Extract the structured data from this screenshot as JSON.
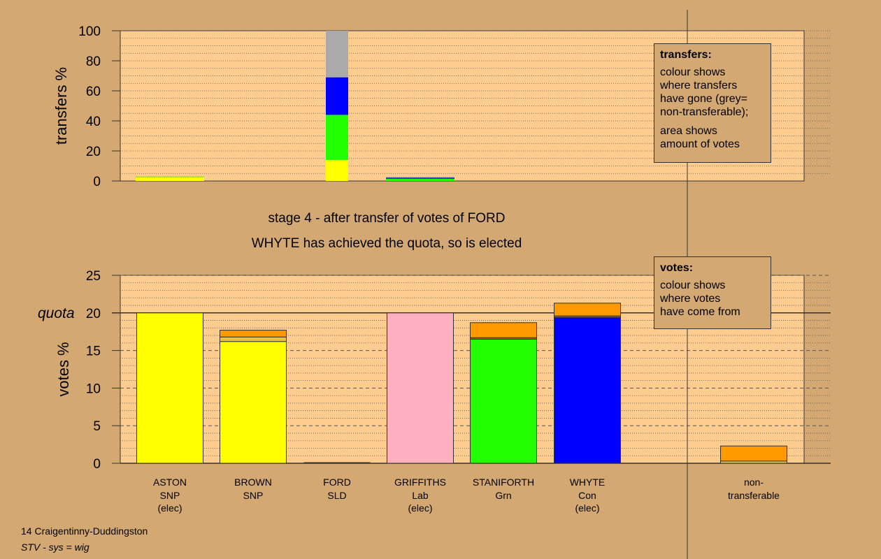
{
  "stage_text": "stage 4 - after transfer of votes of FORD",
  "elected_text": "WHYTE has achieved the quota, so is elected",
  "transfers_legend": {
    "title": "transfers:",
    "lines_a": [
      "colour shows",
      "where transfers",
      "have gone (grey=",
      "non-transferable);"
    ],
    "lines_b": [
      "area shows",
      "amount of votes"
    ]
  },
  "votes_legend": {
    "title": "votes:",
    "lines": [
      "colour shows",
      "where votes",
      "have come from"
    ]
  },
  "footer": {
    "line1": "14 Craigentinny-Duddingston",
    "line2": "STV - sys = wig"
  },
  "colors": {
    "background": "#d4a872",
    "plot_bg": "#ffcc90",
    "ASTON": "#ffff00",
    "BROWN": "#ffff00",
    "FORD": "#ff9900",
    "GRIFFITHS": "#ffb0c0",
    "STANIFORTH": "#22ff00",
    "WHYTE": "#0000ff",
    "nontransferable": "#aaaaaa"
  },
  "chart_data": [
    {
      "type": "bar",
      "stacked": true,
      "ylabel": "transfers %",
      "ylim": [
        0,
        100
      ],
      "yticks": [
        0,
        20,
        40,
        60,
        80,
        100
      ],
      "grid": true,
      "columns": [
        {
          "name": "ASTON",
          "segments": [
            {
              "to": "ASTON",
              "value": 2.5
            },
            {
              "to": "STANIFORTH",
              "value": 0.4
            }
          ]
        },
        {
          "name": "BROWN",
          "segments": []
        },
        {
          "name": "FORD",
          "segments": [
            {
              "to": "ASTON",
              "value": 14
            },
            {
              "to": "STANIFORTH",
              "value": 30
            },
            {
              "to": "WHYTE",
              "value": 25
            },
            {
              "to": "non-transferable",
              "value": 31
            }
          ]
        },
        {
          "name": "GRIFFITHS",
          "segments": [
            {
              "to": "STANIFORTH",
              "value": 1.5
            },
            {
              "to": "WHYTE",
              "value": 0.7
            },
            {
              "to": "non-transferable",
              "value": 0.6
            }
          ]
        },
        {
          "name": "STANIFORTH",
          "segments": []
        },
        {
          "name": "WHYTE",
          "segments": []
        }
      ]
    },
    {
      "type": "bar",
      "stacked": true,
      "ylabel": "votes %",
      "ylim": [
        0,
        25
      ],
      "yticks": [
        0,
        5,
        10,
        15,
        20,
        25
      ],
      "quota": 20,
      "quota_label": "quota",
      "grid": true,
      "categories": [
        {
          "name": "ASTON",
          "party": "SNP",
          "note": "(elec)"
        },
        {
          "name": "BROWN",
          "party": "SNP",
          "note": ""
        },
        {
          "name": "FORD",
          "party": "SLD",
          "note": ""
        },
        {
          "name": "GRIFFITHS",
          "party": "Lab",
          "note": "(elec)"
        },
        {
          "name": "STANIFORTH",
          "party": "Grn",
          "note": ""
        },
        {
          "name": "WHYTE",
          "party": "Con",
          "note": "(elec)"
        },
        {
          "name": "non-",
          "party": "transferable",
          "note": ""
        }
      ],
      "series": [
        {
          "from": "own",
          "values": [
            20,
            16.2,
            0,
            20,
            16.5,
            19.4,
            0
          ]
        },
        {
          "from": "transfers",
          "values": [
            0,
            0.6,
            0,
            0,
            0.2,
            0.2,
            0.3
          ]
        },
        {
          "from": "FORD",
          "values": [
            0,
            0.9,
            0,
            0,
            2.0,
            1.7,
            2.0
          ]
        }
      ]
    }
  ]
}
